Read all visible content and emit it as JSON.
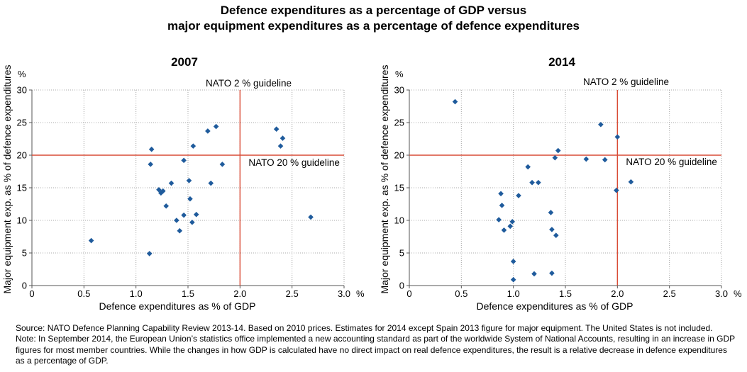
{
  "title_line1": "Defence expenditures as a percentage of GDP versus",
  "title_line2": "major equipment expenditures as a percentage of defence expenditures",
  "chart_data": [
    {
      "type": "scatter",
      "title": "2007",
      "xlabel": "Defence expenditures as % of GDP",
      "ylabel": "Major equipment exp. as % of defence expenditures",
      "x_unit": "%",
      "y_unit": "%",
      "xlim": [
        0,
        3.0
      ],
      "ylim": [
        0,
        30
      ],
      "x_ticks": [
        "0",
        "0.5",
        "1.0",
        "1.5",
        "2.0",
        "2.5",
        "3.0"
      ],
      "y_ticks": [
        "0",
        "5",
        "10",
        "15",
        "20",
        "25",
        "30"
      ],
      "grid": true,
      "marker_color": "#1f5b9c",
      "guideline_color": "#d94c36",
      "guidelines": [
        {
          "axis": "x",
          "value": 2.0,
          "label": "NATO 2 % guideline"
        },
        {
          "axis": "y",
          "value": 20,
          "label": "NATO 20 % guideline"
        }
      ],
      "points": [
        {
          "x": 0.57,
          "y": 6.9
        },
        {
          "x": 1.13,
          "y": 4.9
        },
        {
          "x": 1.14,
          "y": 18.6
        },
        {
          "x": 1.15,
          "y": 20.9
        },
        {
          "x": 1.22,
          "y": 14.7
        },
        {
          "x": 1.24,
          "y": 14.2
        },
        {
          "x": 1.26,
          "y": 14.5
        },
        {
          "x": 1.29,
          "y": 12.2
        },
        {
          "x": 1.34,
          "y": 15.7
        },
        {
          "x": 1.39,
          "y": 10.0
        },
        {
          "x": 1.42,
          "y": 8.4
        },
        {
          "x": 1.46,
          "y": 10.8
        },
        {
          "x": 1.46,
          "y": 19.2
        },
        {
          "x": 1.51,
          "y": 16.1
        },
        {
          "x": 1.52,
          "y": 13.3
        },
        {
          "x": 1.54,
          "y": 9.7
        },
        {
          "x": 1.55,
          "y": 21.4
        },
        {
          "x": 1.58,
          "y": 10.9
        },
        {
          "x": 1.69,
          "y": 23.7
        },
        {
          "x": 1.72,
          "y": 15.7
        },
        {
          "x": 1.77,
          "y": 24.4
        },
        {
          "x": 1.83,
          "y": 18.6
        },
        {
          "x": 2.35,
          "y": 24.0
        },
        {
          "x": 2.39,
          "y": 21.4
        },
        {
          "x": 2.41,
          "y": 22.6
        },
        {
          "x": 2.68,
          "y": 10.5
        }
      ]
    },
    {
      "type": "scatter",
      "title": "2014",
      "xlabel": "Defence expenditures as % of GDP",
      "ylabel": "Major equipment exp. as % of defence expenditures",
      "x_unit": "%",
      "y_unit": "%",
      "xlim": [
        0,
        3.0
      ],
      "ylim": [
        0,
        30
      ],
      "x_ticks": [
        "0",
        "0.5",
        "1.0",
        "1.5",
        "2.0",
        "2.5",
        "3.0"
      ],
      "y_ticks": [
        "0",
        "5",
        "10",
        "15",
        "20",
        "25",
        "30"
      ],
      "grid": true,
      "marker_color": "#1f5b9c",
      "guideline_color": "#d94c36",
      "guidelines": [
        {
          "axis": "x",
          "value": 2.0,
          "label": "NATO 2 % guideline"
        },
        {
          "axis": "y",
          "value": 20,
          "label": "NATO 20 % guideline"
        }
      ],
      "points": [
        {
          "x": 0.44,
          "y": 28.2
        },
        {
          "x": 0.86,
          "y": 10.1
        },
        {
          "x": 0.88,
          "y": 14.1
        },
        {
          "x": 0.89,
          "y": 12.3
        },
        {
          "x": 0.91,
          "y": 8.5
        },
        {
          "x": 0.97,
          "y": 9.1
        },
        {
          "x": 0.99,
          "y": 9.8
        },
        {
          "x": 1.0,
          "y": 3.7
        },
        {
          "x": 1.0,
          "y": 0.9
        },
        {
          "x": 1.05,
          "y": 13.8
        },
        {
          "x": 1.14,
          "y": 18.2
        },
        {
          "x": 1.18,
          "y": 15.8
        },
        {
          "x": 1.2,
          "y": 1.8
        },
        {
          "x": 1.24,
          "y": 15.8
        },
        {
          "x": 1.36,
          "y": 11.2
        },
        {
          "x": 1.37,
          "y": 8.6
        },
        {
          "x": 1.37,
          "y": 1.9
        },
        {
          "x": 1.4,
          "y": 19.6
        },
        {
          "x": 1.41,
          "y": 7.7
        },
        {
          "x": 1.43,
          "y": 20.7
        },
        {
          "x": 1.7,
          "y": 19.4
        },
        {
          "x": 1.84,
          "y": 24.7
        },
        {
          "x": 1.88,
          "y": 19.3
        },
        {
          "x": 1.99,
          "y": 14.6
        },
        {
          "x": 2.0,
          "y": 22.8
        },
        {
          "x": 2.13,
          "y": 15.9
        }
      ]
    }
  ],
  "source_note": {
    "source": "Source: NATO Defence Planning Capability Review 2013-14. Based on 2010 prices. Estimates for 2014 except Spain 2013 figure for major equipment. The United States is not included.",
    "note": "Note: In September 2014, the European Union’s statistics office implemented a new accounting standard as part of the worldwide System of National Accounts, resulting in an increase in GDP figures for most member countries. While the changes in how GDP is calculated have no direct impact on real defence expenditures, the result is a relative decrease in defence expenditures as a percentage of GDP."
  }
}
